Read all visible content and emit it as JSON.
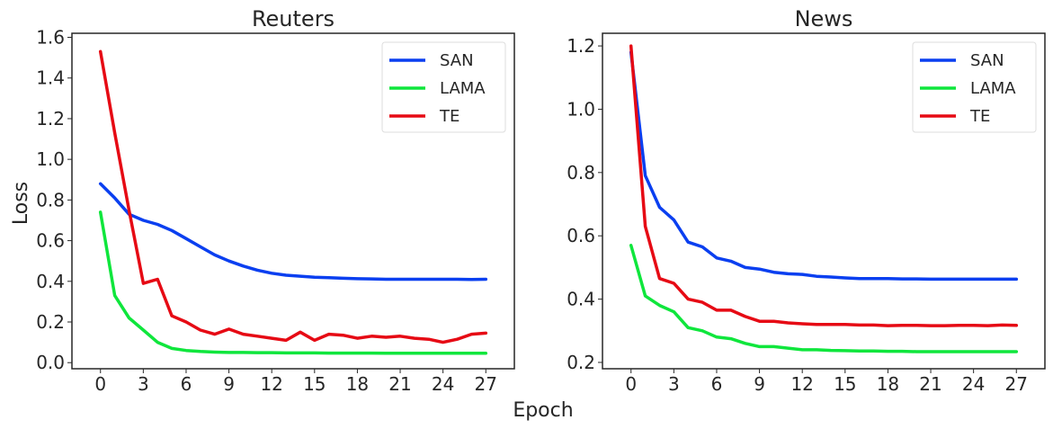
{
  "figure": {
    "shared_xlabel": "Epoch",
    "shared_ylabel": "Loss"
  },
  "chart_data": [
    {
      "type": "line",
      "title": "Reuters",
      "xlabel": "Epoch",
      "ylabel": "Loss",
      "xlim": [
        -2,
        29
      ],
      "ylim": [
        -0.03,
        1.62
      ],
      "xticks": [
        0,
        3,
        6,
        9,
        12,
        15,
        18,
        21,
        24,
        27
      ],
      "yticks": [
        0.0,
        0.2,
        0.4,
        0.6,
        0.8,
        1.0,
        1.2,
        1.4,
        1.6
      ],
      "ytick_labels": [
        "0.0",
        "0.2",
        "0.4",
        "0.6",
        "0.8",
        "1.0",
        "1.2",
        "1.4",
        "1.6"
      ],
      "grid": false,
      "legend": "top-right",
      "x": [
        0,
        1,
        2,
        3,
        4,
        5,
        6,
        7,
        8,
        9,
        10,
        11,
        12,
        13,
        14,
        15,
        16,
        17,
        18,
        19,
        20,
        21,
        22,
        23,
        24,
        25,
        26,
        27
      ],
      "series": [
        {
          "name": "SAN",
          "color": "#0a3ff0",
          "values": [
            0.88,
            0.81,
            0.73,
            0.7,
            0.68,
            0.65,
            0.61,
            0.57,
            0.53,
            0.5,
            0.475,
            0.455,
            0.44,
            0.43,
            0.425,
            0.42,
            0.418,
            0.415,
            0.413,
            0.412,
            0.41,
            0.41,
            0.41,
            0.41,
            0.41,
            0.41,
            0.409,
            0.41
          ]
        },
        {
          "name": "LAMA",
          "color": "#0fe63c",
          "values": [
            0.74,
            0.33,
            0.22,
            0.16,
            0.1,
            0.07,
            0.06,
            0.055,
            0.052,
            0.05,
            0.05,
            0.049,
            0.049,
            0.048,
            0.048,
            0.048,
            0.047,
            0.047,
            0.047,
            0.047,
            0.046,
            0.046,
            0.046,
            0.046,
            0.046,
            0.046,
            0.046,
            0.046
          ]
        },
        {
          "name": "TE",
          "color": "#e60a14",
          "values": [
            1.53,
            1.13,
            0.75,
            0.39,
            0.41,
            0.23,
            0.2,
            0.16,
            0.14,
            0.165,
            0.14,
            0.13,
            0.12,
            0.11,
            0.15,
            0.11,
            0.14,
            0.135,
            0.12,
            0.13,
            0.125,
            0.13,
            0.12,
            0.115,
            0.1,
            0.115,
            0.14,
            0.145
          ]
        }
      ]
    },
    {
      "type": "line",
      "title": "News",
      "xlabel": "Epoch",
      "ylabel": "Loss",
      "xlim": [
        -2,
        29
      ],
      "ylim": [
        0.18,
        1.24
      ],
      "xticks": [
        0,
        3,
        6,
        9,
        12,
        15,
        18,
        21,
        24,
        27
      ],
      "yticks": [
        0.2,
        0.4,
        0.6,
        0.8,
        1.0,
        1.2
      ],
      "ytick_labels": [
        "0.2",
        "0.4",
        "0.6",
        "0.8",
        "1.0",
        "1.2"
      ],
      "grid": false,
      "legend": "top-right",
      "x": [
        0,
        1,
        2,
        3,
        4,
        5,
        6,
        7,
        8,
        9,
        10,
        11,
        12,
        13,
        14,
        15,
        16,
        17,
        18,
        19,
        20,
        21,
        22,
        23,
        24,
        25,
        26,
        27
      ],
      "series": [
        {
          "name": "SAN",
          "color": "#0a3ff0",
          "values": [
            1.18,
            0.79,
            0.69,
            0.65,
            0.58,
            0.565,
            0.53,
            0.52,
            0.5,
            0.495,
            0.485,
            0.48,
            0.478,
            0.472,
            0.47,
            0.467,
            0.465,
            0.465,
            0.465,
            0.464,
            0.464,
            0.463,
            0.463,
            0.463,
            0.463,
            0.463,
            0.463,
            0.463
          ]
        },
        {
          "name": "LAMA",
          "color": "#0fe63c",
          "values": [
            0.57,
            0.41,
            0.38,
            0.36,
            0.31,
            0.3,
            0.28,
            0.275,
            0.26,
            0.25,
            0.25,
            0.245,
            0.24,
            0.24,
            0.238,
            0.237,
            0.236,
            0.236,
            0.235,
            0.235,
            0.234,
            0.234,
            0.234,
            0.234,
            0.234,
            0.234,
            0.234,
            0.234
          ]
        },
        {
          "name": "TE",
          "color": "#e60a14",
          "values": [
            1.2,
            0.63,
            0.465,
            0.45,
            0.4,
            0.39,
            0.365,
            0.365,
            0.345,
            0.33,
            0.33,
            0.325,
            0.322,
            0.32,
            0.32,
            0.32,
            0.318,
            0.318,
            0.316,
            0.317,
            0.317,
            0.316,
            0.316,
            0.317,
            0.317,
            0.316,
            0.318,
            0.317
          ]
        }
      ]
    }
  ]
}
